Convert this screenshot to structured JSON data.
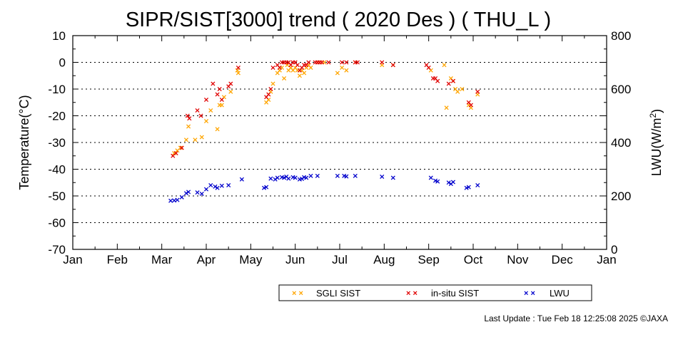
{
  "chart_data": {
    "type": "scatter",
    "title": "SIPR/SIST[3000] trend ( 2020 Des ) ( THU_L )",
    "ylabel": "Temperature(°C)",
    "y2label_main": "LWU(W/m",
    "y2label_sup": "2",
    "y2label_end": ")",
    "ylim": [
      -70,
      10
    ],
    "y2lim": [
      0,
      800
    ],
    "yticks": [
      "10",
      "0",
      "-10",
      "-20",
      "-30",
      "-40",
      "-50",
      "-60",
      "-70"
    ],
    "y2ticks": [
      "800",
      "600",
      "400",
      "200",
      "0"
    ],
    "xticks": [
      "Jan",
      "Feb",
      "Mar",
      "Apr",
      "May",
      "Jun",
      "Jul",
      "Aug",
      "Sep",
      "Oct",
      "Nov",
      "Dec",
      "Jan"
    ],
    "x_unit": "month",
    "grid": true,
    "legend_position": "bottom",
    "series": [
      {
        "name": "SGLI SIST",
        "color": "#ffa500",
        "axis": "left",
        "points": [
          [
            2.28,
            -34
          ],
          [
            2.35,
            -33
          ],
          [
            2.42,
            -32
          ],
          [
            2.55,
            -29
          ],
          [
            2.6,
            -24
          ],
          [
            2.75,
            -29
          ],
          [
            2.9,
            -28
          ],
          [
            3.0,
            -22
          ],
          [
            3.1,
            -18
          ],
          [
            3.25,
            -25
          ],
          [
            3.3,
            -16
          ],
          [
            3.35,
            -16
          ],
          [
            3.4,
            -13
          ],
          [
            3.55,
            -11
          ],
          [
            3.7,
            -3
          ],
          [
            3.72,
            -4
          ],
          [
            4.35,
            -15
          ],
          [
            4.4,
            -14
          ],
          [
            4.45,
            -11
          ],
          [
            4.5,
            -8
          ],
          [
            4.6,
            -4
          ],
          [
            4.65,
            -3
          ],
          [
            4.7,
            -2
          ],
          [
            4.75,
            -6
          ],
          [
            4.82,
            -1
          ],
          [
            4.85,
            -3
          ],
          [
            4.9,
            -2
          ],
          [
            4.95,
            -3
          ],
          [
            5.0,
            -2
          ],
          [
            5.05,
            -3
          ],
          [
            5.1,
            -5
          ],
          [
            5.15,
            -3
          ],
          [
            5.2,
            -4
          ],
          [
            5.25,
            -2
          ],
          [
            5.3,
            -1
          ],
          [
            5.35,
            -2
          ],
          [
            5.5,
            0
          ],
          [
            5.55,
            0
          ],
          [
            5.65,
            0
          ],
          [
            5.95,
            -4
          ],
          [
            6.05,
            -2
          ],
          [
            6.15,
            -3
          ],
          [
            6.35,
            0
          ],
          [
            6.95,
            -1
          ],
          [
            7.2,
            -1
          ],
          [
            8.05,
            -3
          ],
          [
            8.35,
            -1
          ],
          [
            8.4,
            -17
          ],
          [
            8.5,
            -6
          ],
          [
            8.55,
            -7
          ],
          [
            8.6,
            -10
          ],
          [
            8.65,
            -11
          ],
          [
            8.75,
            -10
          ],
          [
            8.9,
            -16
          ],
          [
            8.95,
            -17
          ],
          [
            9.1,
            -12
          ]
        ]
      },
      {
        "name": "in-situ SIST",
        "color": "#e00000",
        "axis": "left",
        "points": [
          [
            2.25,
            -35
          ],
          [
            2.32,
            -34
          ],
          [
            2.45,
            -32
          ],
          [
            2.58,
            -20
          ],
          [
            2.62,
            -21
          ],
          [
            2.8,
            -18
          ],
          [
            2.88,
            -20
          ],
          [
            3.0,
            -14
          ],
          [
            3.15,
            -8
          ],
          [
            3.25,
            -12
          ],
          [
            3.3,
            -10
          ],
          [
            3.35,
            -14
          ],
          [
            3.5,
            -9
          ],
          [
            3.55,
            -8
          ],
          [
            3.72,
            -2
          ],
          [
            4.35,
            -13
          ],
          [
            4.4,
            -12
          ],
          [
            4.45,
            -10
          ],
          [
            4.5,
            -2
          ],
          [
            4.6,
            -1
          ],
          [
            4.65,
            -2
          ],
          [
            4.7,
            0
          ],
          [
            4.75,
            0
          ],
          [
            4.8,
            0
          ],
          [
            4.85,
            0
          ],
          [
            4.9,
            -1
          ],
          [
            4.95,
            0
          ],
          [
            5.0,
            0
          ],
          [
            5.05,
            -1
          ],
          [
            5.1,
            -3
          ],
          [
            5.15,
            -2
          ],
          [
            5.2,
            -1
          ],
          [
            5.25,
            -1
          ],
          [
            5.3,
            0
          ],
          [
            5.45,
            0
          ],
          [
            5.5,
            0
          ],
          [
            5.55,
            0
          ],
          [
            5.6,
            0
          ],
          [
            5.75,
            0
          ],
          [
            6.05,
            0
          ],
          [
            6.15,
            0
          ],
          [
            6.35,
            0
          ],
          [
            6.4,
            0
          ],
          [
            6.95,
            0
          ],
          [
            7.2,
            -1
          ],
          [
            7.95,
            -1
          ],
          [
            8.0,
            -2
          ],
          [
            8.1,
            -6
          ],
          [
            8.15,
            -6
          ],
          [
            8.2,
            -7
          ],
          [
            8.45,
            -8
          ],
          [
            8.55,
            -7
          ],
          [
            8.9,
            -15
          ],
          [
            8.95,
            -16
          ],
          [
            9.1,
            -11
          ]
        ]
      },
      {
        "name": "LWU",
        "color": "#0000cc",
        "axis": "right",
        "points": [
          [
            2.2,
            182
          ],
          [
            2.28,
            183
          ],
          [
            2.35,
            185
          ],
          [
            2.45,
            195
          ],
          [
            2.55,
            210
          ],
          [
            2.6,
            215
          ],
          [
            2.8,
            213
          ],
          [
            2.9,
            208
          ],
          [
            3.0,
            225
          ],
          [
            3.1,
            240
          ],
          [
            3.2,
            235
          ],
          [
            3.25,
            230
          ],
          [
            3.35,
            238
          ],
          [
            3.5,
            240
          ],
          [
            3.8,
            262
          ],
          [
            4.3,
            230
          ],
          [
            4.35,
            233
          ],
          [
            4.45,
            265
          ],
          [
            4.55,
            262
          ],
          [
            4.6,
            268
          ],
          [
            4.7,
            270
          ],
          [
            4.75,
            268
          ],
          [
            4.8,
            272
          ],
          [
            4.85,
            265
          ],
          [
            4.95,
            270
          ],
          [
            5.0,
            268
          ],
          [
            5.1,
            262
          ],
          [
            5.15,
            264
          ],
          [
            5.2,
            270
          ],
          [
            5.25,
            268
          ],
          [
            5.35,
            275
          ],
          [
            5.5,
            275
          ],
          [
            5.95,
            275
          ],
          [
            6.1,
            275
          ],
          [
            6.15,
            273
          ],
          [
            6.35,
            275
          ],
          [
            6.95,
            272
          ],
          [
            7.2,
            268
          ],
          [
            8.05,
            268
          ],
          [
            8.15,
            257
          ],
          [
            8.2,
            254
          ],
          [
            8.45,
            250
          ],
          [
            8.5,
            245
          ],
          [
            8.55,
            252
          ],
          [
            8.85,
            230
          ],
          [
            8.9,
            233
          ],
          [
            9.1,
            240
          ]
        ]
      }
    ]
  },
  "footer": {
    "text": "Last Update : Tue Feb 18 12:25:08 2025  ©JAXA"
  }
}
